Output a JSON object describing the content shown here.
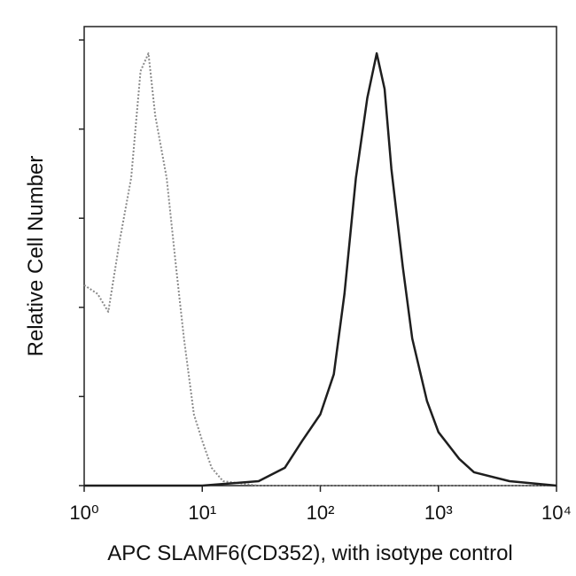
{
  "chart_data": {
    "type": "line",
    "x_label": "APC SLAMF6(CD352), with isotype control",
    "y_label": "Relative Cell Number",
    "xscale": "log",
    "xlim": [
      1,
      10000
    ],
    "xticks": [
      {
        "value": 1,
        "label": "10⁰"
      },
      {
        "value": 10,
        "label": "10¹"
      },
      {
        "value": 100,
        "label": "10²"
      },
      {
        "value": 1000,
        "label": "10³"
      },
      {
        "value": 10000,
        "label": "10⁴"
      }
    ],
    "ylim": [
      0,
      103
    ],
    "yticks": [
      0,
      20,
      40,
      60,
      80,
      100
    ],
    "series": [
      {
        "color": "#8a8a8a",
        "dashed": true,
        "x": [
          1,
          1.3,
          1.6,
          2,
          2.5,
          3,
          3.5,
          4,
          5,
          6,
          7,
          8.5,
          10,
          12,
          15,
          30,
          100,
          1000,
          10000
        ],
        "values": [
          45,
          43,
          39,
          55,
          69,
          93,
          97,
          83,
          69,
          49,
          33,
          16,
          10,
          4,
          1,
          0,
          0,
          0,
          0
        ]
      },
      {
        "color": "#1e1e1e",
        "dashed": false,
        "x": [
          1,
          10,
          30,
          50,
          70,
          100,
          130,
          160,
          200,
          250,
          300,
          350,
          400,
          500,
          600,
          800,
          1000,
          1500,
          2000,
          4000,
          10000
        ],
        "values": [
          0,
          0,
          1,
          4,
          10,
          16,
          25,
          43,
          69,
          87,
          97,
          89,
          71,
          49,
          33,
          19,
          12,
          6,
          3,
          1,
          0
        ]
      }
    ]
  }
}
